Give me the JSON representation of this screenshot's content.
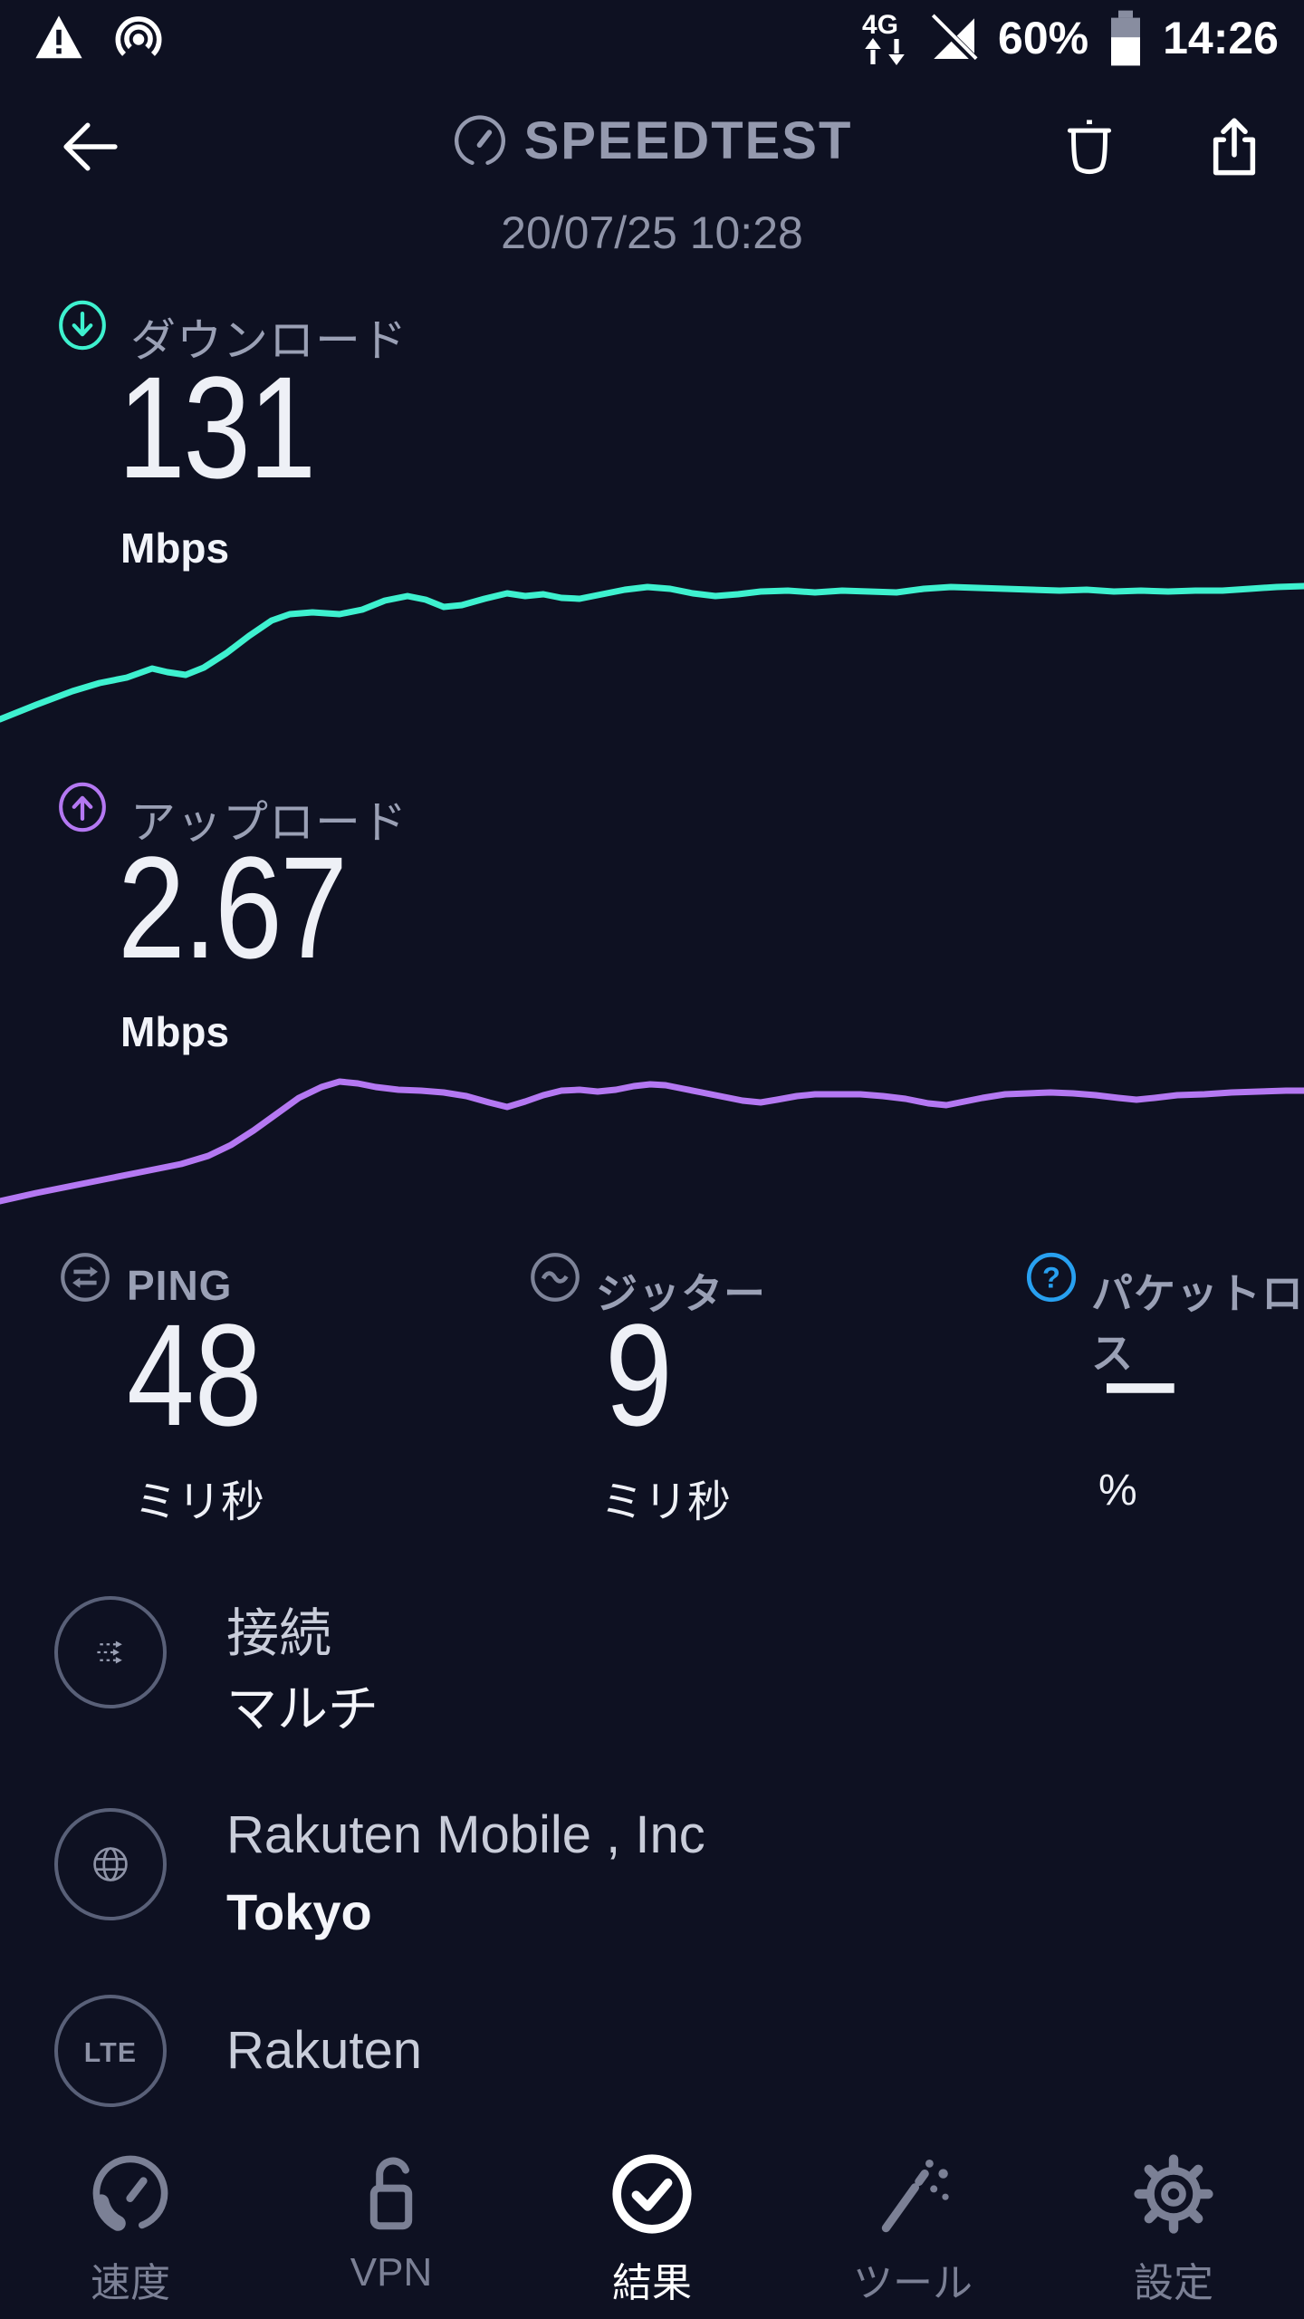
{
  "status_bar": {
    "time": "14:26",
    "battery_percent": "60%",
    "network_type": "4G"
  },
  "header": {
    "title": "SPEEDTEST",
    "date": "20/07/25 10:28"
  },
  "results": {
    "download": {
      "label": "ダウンロード",
      "value": "131",
      "unit": "Mbps"
    },
    "upload": {
      "label": "アップロード",
      "value": "2.67",
      "unit": "Mbps"
    },
    "metrics": [
      {
        "label": "PING",
        "value": "48",
        "unit": "ミリ秒"
      },
      {
        "label": "ジッター",
        "value": "9",
        "unit": "ミリ秒"
      },
      {
        "label": "パケットロス",
        "value": "–",
        "unit": "%"
      }
    ],
    "connection": [
      {
        "label": "接続",
        "value": "マルチ"
      },
      {
        "label": "Rakuten Mobile , Inc",
        "value": "Tokyo"
      },
      {
        "label": "Rakuten",
        "value": ""
      }
    ],
    "lte_badge": "LTE"
  },
  "nav": {
    "active_index": 2,
    "items": [
      {
        "label": "速度"
      },
      {
        "label": "VPN"
      },
      {
        "label": "結果"
      },
      {
        "label": "ツール"
      },
      {
        "label": "設定"
      }
    ]
  },
  "colors": {
    "background": "#0e1122",
    "download_accent": "#3ef1cf",
    "upload_accent": "#b478f2",
    "packet_loss_accent": "#28a0f0",
    "label_gray": "#9aa0b5",
    "logo_gray": "#9499ae"
  },
  "chart_data": [
    {
      "type": "line",
      "name": "download-speed-over-time",
      "unit": "Mbps",
      "final_value": 131,
      "color": "#3ef1cf",
      "points": [
        [
          0,
          194
        ],
        [
          40,
          178
        ],
        [
          80,
          163
        ],
        [
          110,
          154
        ],
        [
          140,
          148
        ],
        [
          168,
          138
        ],
        [
          185,
          142
        ],
        [
          205,
          145
        ],
        [
          225,
          137
        ],
        [
          250,
          121
        ],
        [
          275,
          102
        ],
        [
          300,
          85
        ],
        [
          320,
          78
        ],
        [
          345,
          76
        ],
        [
          375,
          78
        ],
        [
          400,
          73
        ],
        [
          425,
          63
        ],
        [
          450,
          58
        ],
        [
          470,
          62
        ],
        [
          490,
          70
        ],
        [
          510,
          68
        ],
        [
          535,
          61
        ],
        [
          560,
          55
        ],
        [
          580,
          58
        ],
        [
          600,
          56
        ],
        [
          620,
          60
        ],
        [
          640,
          61
        ],
        [
          665,
          56
        ],
        [
          690,
          51
        ],
        [
          715,
          48
        ],
        [
          740,
          50
        ],
        [
          765,
          55
        ],
        [
          790,
          58
        ],
        [
          815,
          56
        ],
        [
          840,
          53
        ],
        [
          870,
          52
        ],
        [
          900,
          54
        ],
        [
          930,
          52
        ],
        [
          960,
          53
        ],
        [
          990,
          54
        ],
        [
          1020,
          50
        ],
        [
          1050,
          48
        ],
        [
          1080,
          49
        ],
        [
          1110,
          50
        ],
        [
          1140,
          51
        ],
        [
          1170,
          52
        ],
        [
          1200,
          51
        ],
        [
          1230,
          53
        ],
        [
          1260,
          52
        ],
        [
          1290,
          53
        ],
        [
          1320,
          52
        ],
        [
          1350,
          52
        ],
        [
          1380,
          50
        ],
        [
          1410,
          48
        ],
        [
          1440,
          47
        ]
      ]
    },
    {
      "type": "line",
      "name": "upload-speed-over-time",
      "unit": "Mbps",
      "final_value": 2.67,
      "color": "#b478f2",
      "points": [
        [
          0,
          186
        ],
        [
          40,
          177
        ],
        [
          80,
          169
        ],
        [
          120,
          161
        ],
        [
          160,
          153
        ],
        [
          200,
          145
        ],
        [
          230,
          136
        ],
        [
          255,
          124
        ],
        [
          280,
          108
        ],
        [
          305,
          90
        ],
        [
          330,
          72
        ],
        [
          355,
          60
        ],
        [
          375,
          54
        ],
        [
          395,
          56
        ],
        [
          415,
          60
        ],
        [
          440,
          63
        ],
        [
          465,
          64
        ],
        [
          490,
          66
        ],
        [
          515,
          70
        ],
        [
          540,
          77
        ],
        [
          560,
          82
        ],
        [
          580,
          76
        ],
        [
          600,
          69
        ],
        [
          620,
          64
        ],
        [
          640,
          63
        ],
        [
          660,
          65
        ],
        [
          680,
          63
        ],
        [
          700,
          59
        ],
        [
          718,
          57
        ],
        [
          735,
          58
        ],
        [
          755,
          62
        ],
        [
          775,
          66
        ],
        [
          800,
          71
        ],
        [
          820,
          75
        ],
        [
          840,
          77
        ],
        [
          858,
          74
        ],
        [
          880,
          70
        ],
        [
          900,
          68
        ],
        [
          925,
          68
        ],
        [
          950,
          68
        ],
        [
          975,
          70
        ],
        [
          1000,
          73
        ],
        [
          1025,
          78
        ],
        [
          1045,
          80
        ],
        [
          1065,
          76
        ],
        [
          1085,
          72
        ],
        [
          1110,
          68
        ],
        [
          1135,
          67
        ],
        [
          1160,
          66
        ],
        [
          1185,
          67
        ],
        [
          1210,
          69
        ],
        [
          1235,
          72
        ],
        [
          1255,
          74
        ],
        [
          1275,
          72
        ],
        [
          1300,
          69
        ],
        [
          1330,
          68
        ],
        [
          1360,
          66
        ],
        [
          1390,
          65
        ],
        [
          1420,
          64
        ],
        [
          1440,
          64
        ]
      ]
    }
  ]
}
